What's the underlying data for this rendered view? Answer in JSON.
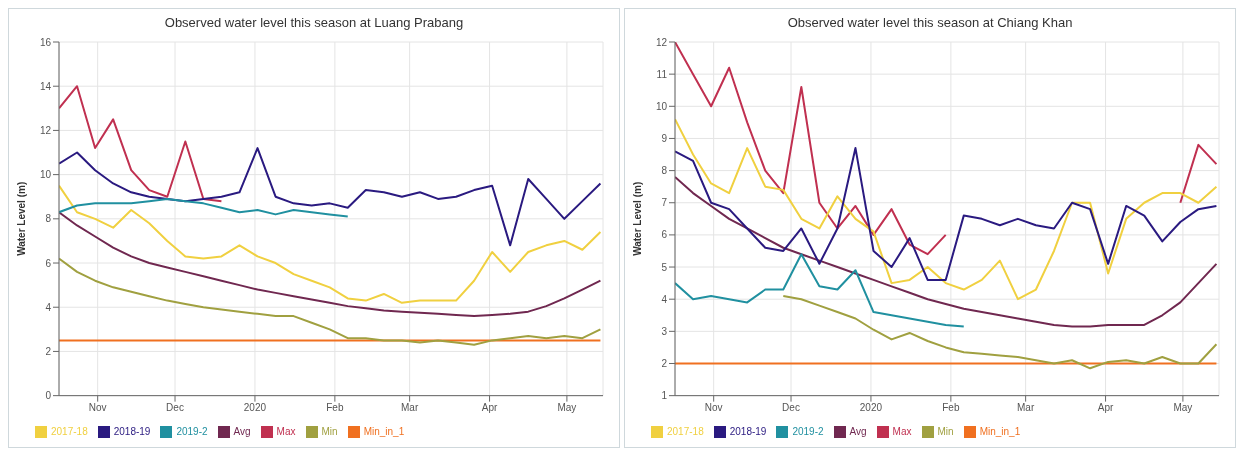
{
  "chart_data": [
    {
      "type": "line",
      "title": "Observed water level this season at Luang Prabang",
      "ylabel": "Water Level (m)",
      "grid": true,
      "legend": "bottom",
      "x": [
        "2019-10-17",
        "2019-10-24",
        "2019-10-31",
        "2019-11-07",
        "2019-11-14",
        "2019-11-21",
        "2019-11-28",
        "2019-12-05",
        "2019-12-12",
        "2019-12-19",
        "2019-12-26",
        "2020-01-02",
        "2020-01-09",
        "2020-01-16",
        "2020-01-23",
        "2020-01-30",
        "2020-02-06",
        "2020-02-13",
        "2020-02-20",
        "2020-02-27",
        "2020-03-05",
        "2020-03-12",
        "2020-03-19",
        "2020-03-26",
        "2020-04-02",
        "2020-04-09",
        "2020-04-16",
        "2020-04-23",
        "2020-04-30",
        "2020-05-07",
        "2020-05-14"
      ],
      "xlim": [
        "2019-10-17",
        "2020-05-15"
      ],
      "xticks": [
        {
          "value": "2019-11-01",
          "label": "Nov"
        },
        {
          "value": "2019-12-01",
          "label": "Dec"
        },
        {
          "value": "2020-01-01",
          "label": "2020"
        },
        {
          "value": "2020-02-01",
          "label": "Feb"
        },
        {
          "value": "2020-03-01",
          "label": "Mar"
        },
        {
          "value": "2020-04-01",
          "label": "Apr"
        },
        {
          "value": "2020-05-01",
          "label": "May"
        }
      ],
      "ylim": [
        0,
        16
      ],
      "yticks": [
        0,
        2,
        4,
        6,
        8,
        10,
        12,
        14,
        16
      ],
      "series": [
        {
          "name": "Min_in_1",
          "color": "#f07020",
          "values": [
            2.5,
            2.5,
            2.5,
            2.5,
            2.5,
            2.5,
            2.5,
            2.5,
            2.5,
            2.5,
            2.5,
            2.5,
            2.5,
            2.5,
            2.5,
            2.5,
            2.5,
            2.5,
            2.5,
            2.5,
            2.5,
            2.5,
            2.5,
            2.5,
            2.5,
            2.5,
            2.5,
            2.5,
            2.5,
            2.5,
            2.5
          ]
        },
        {
          "name": "Min",
          "color": "#a0a040",
          "values": [
            6.2,
            5.6,
            5.2,
            4.9,
            4.7,
            4.5,
            4.3,
            4.15,
            4.0,
            3.9,
            3.8,
            3.7,
            3.6,
            3.6,
            3.3,
            3.0,
            2.6,
            2.6,
            2.5,
            2.5,
            2.4,
            2.5,
            2.4,
            2.3,
            2.5,
            2.6,
            2.7,
            2.6,
            2.7,
            2.6,
            3.0
          ]
        },
        {
          "name": "Avg",
          "color": "#702850",
          "values": [
            8.3,
            7.7,
            7.2,
            6.7,
            6.3,
            6.0,
            5.8,
            5.6,
            5.4,
            5.2,
            5.0,
            4.8,
            4.65,
            4.5,
            4.35,
            4.2,
            4.05,
            3.95,
            3.85,
            3.8,
            3.75,
            3.7,
            3.65,
            3.6,
            3.65,
            3.7,
            3.8,
            4.05,
            4.4,
            4.8,
            5.2
          ]
        },
        {
          "name": "Max",
          "color": "#c03050",
          "values": [
            13.0,
            14.0,
            11.2,
            12.5,
            10.2,
            9.3,
            9.0,
            11.5,
            8.9,
            8.8,
            null,
            null,
            null,
            null,
            null,
            null,
            null,
            null,
            null,
            null,
            null,
            null,
            null,
            null,
            null,
            null,
            null,
            null,
            null,
            null,
            null
          ]
        },
        {
          "name": "2017-18",
          "color": "#f0d040",
          "values": [
            9.5,
            8.3,
            8.0,
            7.6,
            8.4,
            7.8,
            7.0,
            6.3,
            6.2,
            6.3,
            6.8,
            6.3,
            6.0,
            5.5,
            5.2,
            4.9,
            4.4,
            4.3,
            4.6,
            4.2,
            4.3,
            4.3,
            4.3,
            5.2,
            6.5,
            5.6,
            6.5,
            6.8,
            7.0,
            6.6,
            7.4
          ]
        },
        {
          "name": "2018-19",
          "color": "#2a1a80",
          "values": [
            10.5,
            11.0,
            10.2,
            9.6,
            9.2,
            9.0,
            8.9,
            8.8,
            8.9,
            9.0,
            9.2,
            11.2,
            9.0,
            8.7,
            8.6,
            8.7,
            8.5,
            9.3,
            9.2,
            9.0,
            9.2,
            8.9,
            9.0,
            9.3,
            9.5,
            6.8,
            9.8,
            8.9,
            8.0,
            8.8,
            9.6
          ]
        },
        {
          "name": "2019-2",
          "color": "#2090a0",
          "values": [
            8.3,
            8.6,
            8.7,
            8.7,
            8.7,
            8.8,
            8.9,
            8.8,
            8.7,
            8.5,
            8.3,
            8.4,
            8.2,
            8.4,
            8.3,
            8.2,
            8.1,
            null,
            null,
            null,
            null,
            null,
            null,
            null,
            null,
            null,
            null,
            null,
            null,
            null,
            null
          ]
        }
      ]
    },
    {
      "type": "line",
      "title": "Observed water level this season at Chiang Khan",
      "ylabel": "Water Level (m)",
      "grid": true,
      "legend": "bottom",
      "x": [
        "2019-10-17",
        "2019-10-24",
        "2019-10-31",
        "2019-11-07",
        "2019-11-14",
        "2019-11-21",
        "2019-11-28",
        "2019-12-05",
        "2019-12-12",
        "2019-12-19",
        "2019-12-26",
        "2020-01-02",
        "2020-01-09",
        "2020-01-16",
        "2020-01-23",
        "2020-01-30",
        "2020-02-06",
        "2020-02-13",
        "2020-02-20",
        "2020-02-27",
        "2020-03-05",
        "2020-03-12",
        "2020-03-19",
        "2020-03-26",
        "2020-04-02",
        "2020-04-09",
        "2020-04-16",
        "2020-04-23",
        "2020-04-30",
        "2020-05-07",
        "2020-05-14"
      ],
      "xlim": [
        "2019-10-17",
        "2020-05-15"
      ],
      "xticks": [
        {
          "value": "2019-11-01",
          "label": "Nov"
        },
        {
          "value": "2019-12-01",
          "label": "Dec"
        },
        {
          "value": "2020-01-01",
          "label": "2020"
        },
        {
          "value": "2020-02-01",
          "label": "Feb"
        },
        {
          "value": "2020-03-01",
          "label": "Mar"
        },
        {
          "value": "2020-04-01",
          "label": "Apr"
        },
        {
          "value": "2020-05-01",
          "label": "May"
        }
      ],
      "ylim": [
        1,
        12
      ],
      "yticks": [
        1,
        2,
        3,
        4,
        5,
        6,
        7,
        8,
        9,
        10,
        11,
        12
      ],
      "series": [
        {
          "name": "Min_in_1",
          "color": "#f07020",
          "values": [
            2.0,
            2.0,
            2.0,
            2.0,
            2.0,
            2.0,
            2.0,
            2.0,
            2.0,
            2.0,
            2.0,
            2.0,
            2.0,
            2.0,
            2.0,
            2.0,
            2.0,
            2.0,
            2.0,
            2.0,
            2.0,
            2.0,
            2.0,
            2.0,
            2.0,
            2.0,
            2.0,
            2.0,
            2.0,
            2.0,
            2.0
          ]
        },
        {
          "name": "Min",
          "color": "#a0a040",
          "values": [
            null,
            null,
            null,
            null,
            null,
            null,
            4.1,
            4.0,
            3.8,
            3.6,
            3.4,
            3.05,
            2.75,
            2.95,
            2.7,
            2.5,
            2.35,
            2.3,
            2.25,
            2.2,
            2.1,
            2.0,
            2.1,
            1.85,
            2.05,
            2.1,
            2.0,
            2.2,
            2.0,
            2.0,
            2.6
          ]
        },
        {
          "name": "Avg",
          "color": "#702850",
          "values": [
            7.8,
            7.3,
            6.9,
            6.5,
            6.2,
            5.9,
            5.6,
            5.4,
            5.2,
            5.0,
            4.8,
            4.6,
            4.4,
            4.2,
            4.0,
            3.85,
            3.7,
            3.6,
            3.5,
            3.4,
            3.3,
            3.2,
            3.15,
            3.15,
            3.2,
            3.2,
            3.2,
            3.5,
            3.9,
            4.5,
            5.1
          ]
        },
        {
          "name": "Max",
          "color": "#c03050",
          "values": [
            12.0,
            11.0,
            10.0,
            11.2,
            9.5,
            8.0,
            7.3,
            10.6,
            7.0,
            6.2,
            6.9,
            6.0,
            6.8,
            5.7,
            5.4,
            6.0,
            null,
            null,
            null,
            null,
            null,
            null,
            null,
            null,
            null,
            null,
            null,
            null,
            7.0,
            8.8,
            8.2
          ]
        },
        {
          "name": "2017-18",
          "color": "#f0d040",
          "values": [
            9.6,
            8.5,
            7.6,
            7.3,
            8.7,
            7.5,
            7.4,
            6.5,
            6.2,
            7.2,
            6.5,
            6.1,
            4.5,
            4.6,
            5.0,
            4.5,
            4.3,
            4.6,
            5.2,
            4.0,
            4.3,
            5.5,
            7.0,
            7.0,
            4.8,
            6.5,
            7.0,
            7.3,
            7.3,
            7.0,
            7.5
          ]
        },
        {
          "name": "2018-19",
          "color": "#2a1a80",
          "values": [
            8.6,
            8.3,
            7.0,
            6.8,
            6.2,
            5.6,
            5.5,
            6.2,
            5.1,
            6.2,
            8.7,
            5.5,
            5.0,
            5.9,
            4.6,
            4.6,
            6.6,
            6.5,
            6.3,
            6.5,
            6.3,
            6.2,
            7.0,
            6.8,
            5.1,
            6.9,
            6.6,
            5.8,
            6.4,
            6.8,
            6.9
          ]
        },
        {
          "name": "2019-2",
          "color": "#2090a0",
          "values": [
            4.5,
            4.0,
            4.1,
            4.0,
            3.9,
            4.3,
            4.3,
            5.4,
            4.4,
            4.3,
            4.9,
            3.6,
            3.5,
            3.4,
            3.3,
            3.2,
            3.15,
            null,
            null,
            null,
            null,
            null,
            null,
            null,
            null,
            null,
            null,
            null,
            null,
            null,
            null
          ]
        }
      ]
    }
  ]
}
